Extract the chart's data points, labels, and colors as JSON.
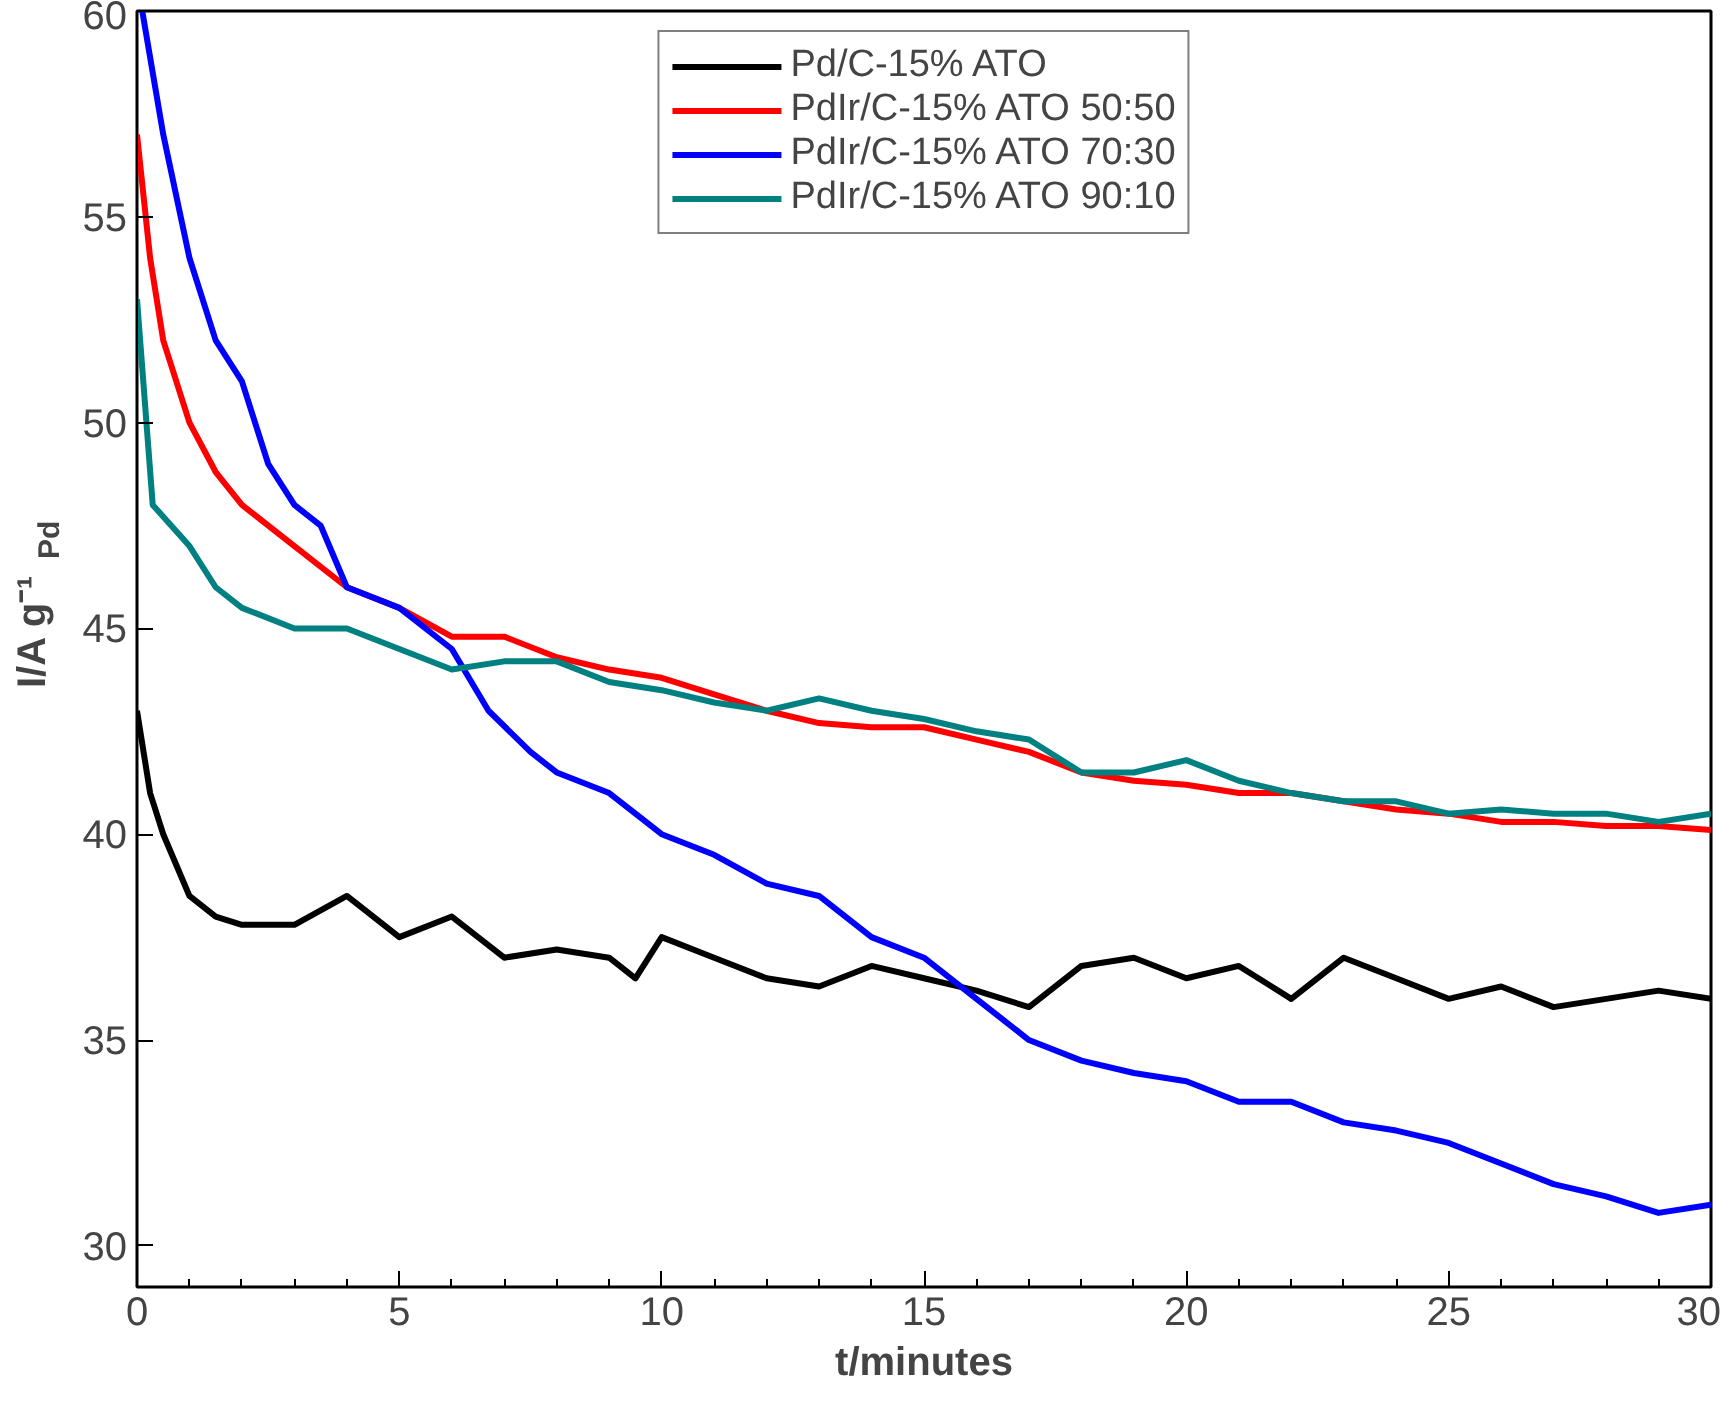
{
  "chart_data": {
    "type": "line",
    "xlabel": "t/minutes",
    "ylabel": "I/A g⁻¹ $_{Pd}$",
    "xlim": [
      0,
      30
    ],
    "ylim": [
      29,
      60
    ],
    "xticks": [
      0,
      5,
      10,
      15,
      20,
      25,
      30
    ],
    "yticks": [
      30,
      35,
      40,
      45,
      50,
      55,
      60
    ],
    "grid": false,
    "legend": "top",
    "marker": "none",
    "line_style": "solid",
    "series": [
      {
        "name": "Pd/C-15% ATO",
        "color": "#000000",
        "x": [
          0,
          0.25,
          0.5,
          1,
          1.5,
          2,
          3,
          4,
          5,
          6,
          7,
          8,
          9,
          9.5,
          10,
          11,
          12,
          13,
          14,
          15,
          16,
          17,
          18,
          19,
          20,
          21,
          22,
          23,
          24,
          25,
          26,
          27,
          28,
          29,
          30
        ],
        "values": [
          43,
          41,
          40,
          38.5,
          38,
          37.8,
          37.8,
          38.5,
          37.5,
          38,
          37,
          37.2,
          37,
          36.5,
          37.5,
          37,
          36.5,
          36.3,
          36.8,
          36.5,
          36.2,
          35.8,
          36.8,
          37,
          36.5,
          36.8,
          36,
          37,
          36.5,
          36,
          36.3,
          35.8,
          36,
          36.2,
          36
        ]
      },
      {
        "name": "PdIr/C-15% ATO 50:50",
        "color": "#ff0000",
        "x": [
          0,
          0.25,
          0.5,
          1,
          1.5,
          2,
          3,
          4,
          5,
          6,
          7,
          8,
          9,
          10,
          11,
          12,
          13,
          14,
          15,
          16,
          17,
          18,
          19,
          20,
          21,
          22,
          23,
          24,
          25,
          26,
          27,
          28,
          29,
          30
        ],
        "values": [
          57,
          54,
          52,
          50,
          48.8,
          48,
          47,
          46,
          45.5,
          44.8,
          44.8,
          44.3,
          44,
          43.8,
          43.4,
          43,
          42.7,
          42.6,
          42.6,
          42.3,
          42,
          41.5,
          41.3,
          41.2,
          41,
          41,
          40.8,
          40.6,
          40.5,
          40.3,
          40.3,
          40.2,
          40.2,
          40.1
        ]
      },
      {
        "name": "PdIr/C-15% ATO 70:30",
        "color": "#0000ff",
        "x": [
          0.1,
          0.5,
          1,
          1.5,
          2,
          2.5,
          3,
          3.5,
          4,
          5,
          6,
          6.7,
          7.5,
          8,
          9,
          10,
          11,
          12,
          13,
          14,
          15,
          16,
          17,
          18,
          19,
          20,
          21,
          22,
          23,
          24,
          25,
          26,
          27,
          28,
          29,
          30
        ],
        "values": [
          60,
          57,
          54,
          52,
          51,
          49,
          48,
          47.5,
          46,
          45.5,
          44.5,
          43,
          42,
          41.5,
          41,
          40,
          39.5,
          38.8,
          38.5,
          37.5,
          37,
          36,
          35,
          34.5,
          34.2,
          34,
          33.5,
          33.5,
          33,
          32.8,
          32.5,
          32,
          31.5,
          31.2,
          30.8,
          31
        ]
      },
      {
        "name": "PdIr/C-15% ATO 90:10",
        "color": "#008080",
        "x": [
          0,
          0.3,
          1,
          1.5,
          2,
          3,
          4,
          5,
          6,
          7,
          8,
          9,
          10,
          11,
          12,
          13,
          14,
          15,
          16,
          17,
          18,
          19,
          20,
          21,
          22,
          23,
          24,
          25,
          26,
          27,
          28,
          29,
          30
        ],
        "values": [
          53,
          48,
          47,
          46,
          45.5,
          45,
          45,
          44.5,
          44,
          44.2,
          44.2,
          43.7,
          43.5,
          43.2,
          43,
          43.3,
          43,
          42.8,
          42.5,
          42.3,
          41.5,
          41.5,
          41.8,
          41.3,
          41,
          40.8,
          40.8,
          40.5,
          40.6,
          40.5,
          40.5,
          40.3,
          40.5
        ]
      }
    ]
  }
}
